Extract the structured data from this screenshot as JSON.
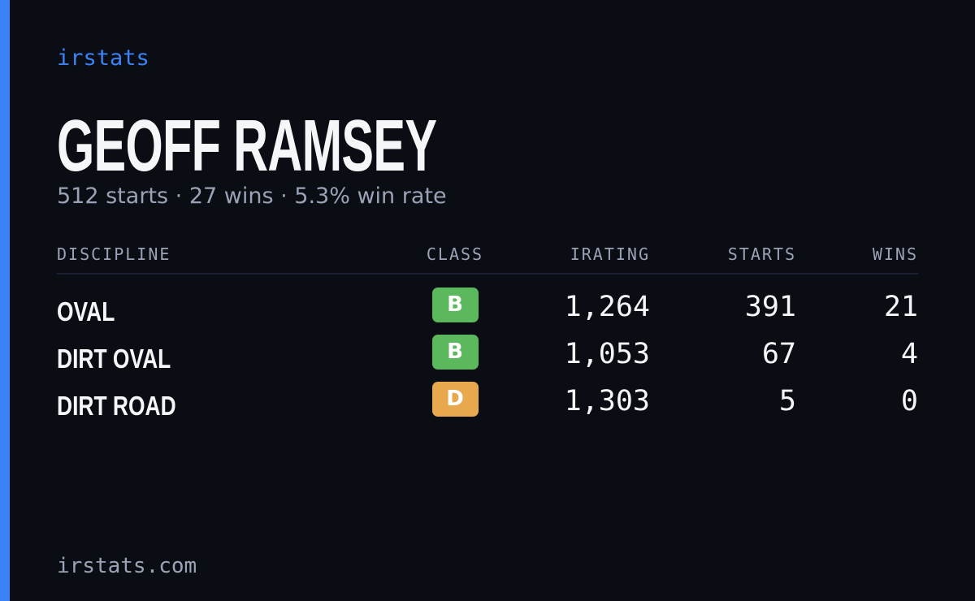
{
  "brand": "irstats",
  "driver": {
    "name": "GEOFF RAMSEY",
    "summary": "512 starts · 27 wins · 5.3% win rate"
  },
  "table": {
    "headers": [
      "DISCIPLINE",
      "CLASS",
      "IRATING",
      "STARTS",
      "WINS"
    ],
    "rows": [
      {
        "discipline": "OVAL",
        "class": "B",
        "class_color": "#5cb85c",
        "irating": "1,264",
        "starts": "391",
        "wins": "21"
      },
      {
        "discipline": "DIRT OVAL",
        "class": "B",
        "class_color": "#5cb85c",
        "irating": "1,053",
        "starts": "67",
        "wins": "4"
      },
      {
        "discipline": "DIRT ROAD",
        "class": "D",
        "class_color": "#e8a94e",
        "irating": "1,303",
        "starts": "5",
        "wins": "0"
      }
    ]
  },
  "footer": "irstats.com"
}
